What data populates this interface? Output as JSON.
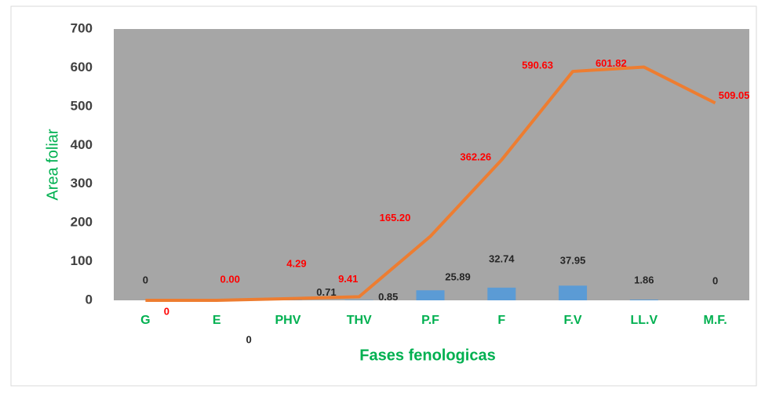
{
  "chart_data": {
    "type": "bar+line",
    "xlabel": "Fases fenologicas",
    "ylabel": "Area foliar",
    "categories": [
      "G",
      "E",
      "PHV",
      "THV",
      "P.F",
      "F",
      "F.V",
      "LL.V",
      "M.F."
    ],
    "series": [
      {
        "type": "bar",
        "color": "#5b9bd5",
        "values": [
          0,
          0,
          0.71,
          0.85,
          25.89,
          32.74,
          37.95,
          1.86,
          0
        ]
      },
      {
        "type": "line",
        "color": "#ed7d31",
        "values": [
          0,
          0,
          4.29,
          9.41,
          165.2,
          362.26,
          590.63,
          601.82,
          509.05
        ],
        "value_labels": [
          "0",
          "0.00",
          "4.29",
          "9.41",
          "165.20",
          "362.26",
          "590.63",
          "601.82",
          "509.05"
        ]
      }
    ],
    "ylim": [
      0,
      700
    ],
    "yticks": [
      0,
      100,
      200,
      300,
      400,
      500,
      600,
      700
    ],
    "grid": false
  }
}
